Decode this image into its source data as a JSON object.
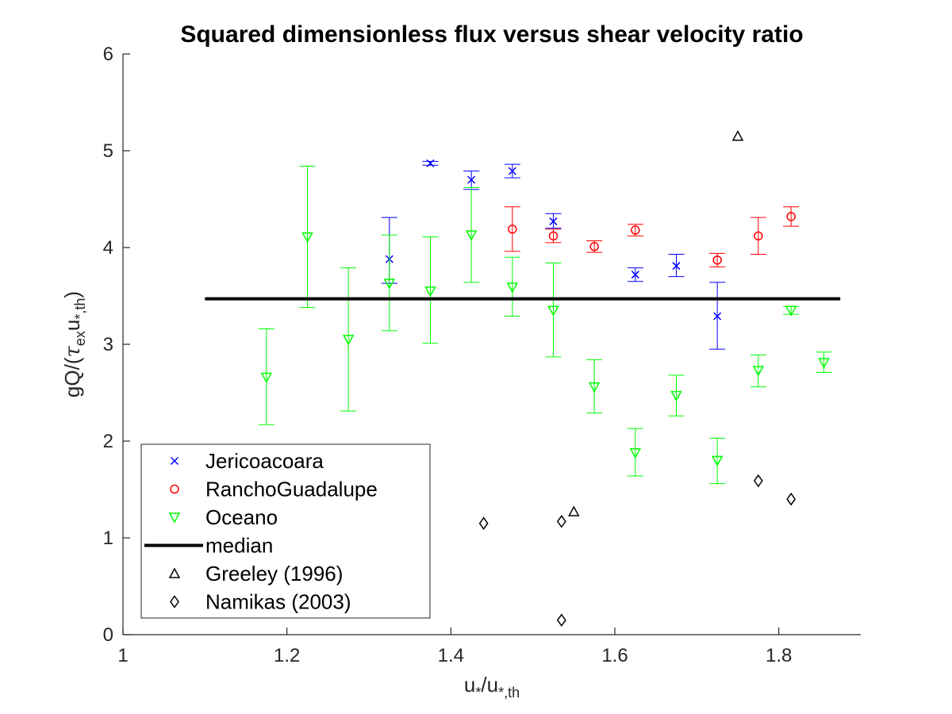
{
  "chart_data": {
    "type": "scatter",
    "title": "Squared dimensionless flux versus shear velocity ratio",
    "xlabel": {
      "base": "u",
      "sub1": "*",
      "mid": "/u",
      "sub2": "*,th"
    },
    "ylabel": {
      "pre": "gQ/(",
      "tau": "τ",
      "sub_ex": "ex",
      "u": "u",
      "sub_th": "*,th",
      "post": ")"
    },
    "xlim": [
      1,
      1.9
    ],
    "ylim": [
      0,
      6
    ],
    "xticks": [
      1,
      1.2,
      1.4,
      1.6,
      1.8
    ],
    "xtick_labels": [
      "1",
      "1.2",
      "1.4",
      "1.6",
      "1.8"
    ],
    "yticks": [
      0,
      1,
      2,
      3,
      4,
      5,
      6
    ],
    "ytick_labels": [
      "0",
      "1",
      "2",
      "3",
      "4",
      "5",
      "6"
    ],
    "grid": false,
    "legend_position": "bottom-left",
    "series": [
      {
        "name": "Jericoacoara",
        "marker": "x",
        "color": "#0000ff",
        "points": [
          {
            "x": 1.325,
            "y": 3.88,
            "lo": 3.63,
            "hi": 4.31
          },
          {
            "x": 1.375,
            "y": 4.87,
            "lo": 4.85,
            "hi": 4.89
          },
          {
            "x": 1.425,
            "y": 4.7,
            "lo": 4.6,
            "hi": 4.79
          },
          {
            "x": 1.475,
            "y": 4.79,
            "lo": 4.72,
            "hi": 4.86
          },
          {
            "x": 1.525,
            "y": 4.27,
            "lo": 4.2,
            "hi": 4.35
          },
          {
            "x": 1.625,
            "y": 3.72,
            "lo": 3.65,
            "hi": 3.79
          },
          {
            "x": 1.675,
            "y": 3.81,
            "lo": 3.7,
            "hi": 3.93
          },
          {
            "x": 1.725,
            "y": 3.29,
            "lo": 2.95,
            "hi": 3.64
          }
        ]
      },
      {
        "name": "RanchoGuadalupe",
        "marker": "o",
        "color": "#ff0000",
        "points": [
          {
            "x": 1.475,
            "y": 4.19,
            "lo": 3.96,
            "hi": 4.42
          },
          {
            "x": 1.525,
            "y": 4.12,
            "lo": 4.05,
            "hi": 4.19
          },
          {
            "x": 1.575,
            "y": 4.01,
            "lo": 3.95,
            "hi": 4.07
          },
          {
            "x": 1.625,
            "y": 4.18,
            "lo": 4.12,
            "hi": 4.24
          },
          {
            "x": 1.725,
            "y": 3.87,
            "lo": 3.8,
            "hi": 3.94
          },
          {
            "x": 1.775,
            "y": 4.12,
            "lo": 3.93,
            "hi": 4.31
          },
          {
            "x": 1.815,
            "y": 4.32,
            "lo": 4.22,
            "hi": 4.42
          }
        ]
      },
      {
        "name": "Oceano",
        "marker": "v",
        "color": "#00ff00",
        "points": [
          {
            "x": 1.175,
            "y": 2.66,
            "lo": 2.17,
            "hi": 3.16
          },
          {
            "x": 1.225,
            "y": 4.11,
            "lo": 3.38,
            "hi": 4.84
          },
          {
            "x": 1.275,
            "y": 3.05,
            "lo": 2.31,
            "hi": 3.79
          },
          {
            "x": 1.325,
            "y": 3.63,
            "lo": 3.14,
            "hi": 4.13
          },
          {
            "x": 1.375,
            "y": 3.55,
            "lo": 3.01,
            "hi": 4.11
          },
          {
            "x": 1.425,
            "y": 4.13,
            "lo": 3.64,
            "hi": 4.62
          },
          {
            "x": 1.475,
            "y": 3.59,
            "lo": 3.29,
            "hi": 3.9
          },
          {
            "x": 1.525,
            "y": 3.35,
            "lo": 2.87,
            "hi": 3.84
          },
          {
            "x": 1.575,
            "y": 2.56,
            "lo": 2.29,
            "hi": 2.84
          },
          {
            "x": 1.625,
            "y": 1.88,
            "lo": 1.64,
            "hi": 2.13
          },
          {
            "x": 1.675,
            "y": 2.47,
            "lo": 2.26,
            "hi": 2.68
          },
          {
            "x": 1.725,
            "y": 1.8,
            "lo": 1.56,
            "hi": 2.03
          },
          {
            "x": 1.775,
            "y": 2.73,
            "lo": 2.56,
            "hi": 2.89
          },
          {
            "x": 1.815,
            "y": 3.35,
            "lo": 3.31,
            "hi": 3.39
          },
          {
            "x": 1.855,
            "y": 2.81,
            "lo": 2.71,
            "hi": 2.92
          }
        ]
      },
      {
        "name": "median",
        "type": "line",
        "color": "#000000",
        "x": [
          1.1,
          1.875
        ],
        "y": [
          3.47,
          3.47
        ]
      },
      {
        "name": "Greeley (1996)",
        "marker": "^",
        "color": "#000000",
        "points": [
          {
            "x": 1.55,
            "y": 1.27
          },
          {
            "x": 1.75,
            "y": 5.15
          }
        ]
      },
      {
        "name": "Namikas (2003)",
        "marker": "d",
        "color": "#000000",
        "points": [
          {
            "x": 1.44,
            "y": 1.15
          },
          {
            "x": 1.535,
            "y": 1.17
          },
          {
            "x": 1.535,
            "y": 0.15
          },
          {
            "x": 1.775,
            "y": 1.59
          },
          {
            "x": 1.815,
            "y": 1.4
          }
        ]
      }
    ]
  }
}
